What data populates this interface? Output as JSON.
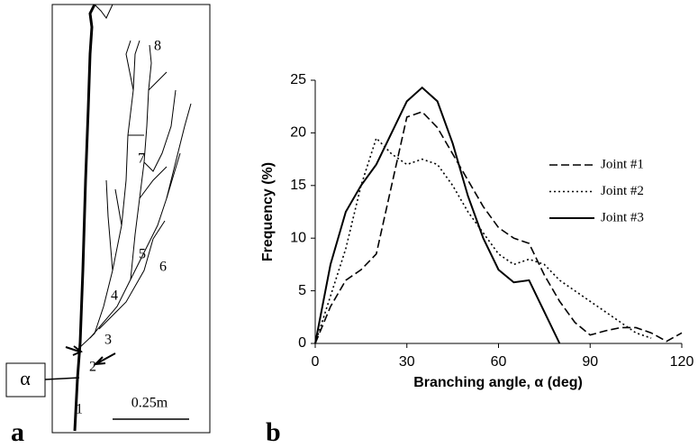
{
  "panel_labels": [
    "a",
    "b"
  ],
  "sketch": {
    "crack_labels": [
      "1",
      "2",
      "3",
      "4",
      "5",
      "6",
      "7",
      "8"
    ],
    "angle_label": "α",
    "scale_label": "0.25m"
  },
  "chart_data": {
    "type": "line",
    "x_label": "Branching angle, α (deg)",
    "y_label": "Frequency (%)",
    "x": [
      0,
      5,
      10,
      15,
      20,
      25,
      30,
      35,
      40,
      45,
      50,
      55,
      60,
      65,
      70,
      75,
      80,
      85,
      90,
      95,
      100,
      105,
      110,
      115,
      120
    ],
    "series": [
      {
        "name": "Joint #1",
        "color": "#000000",
        "dash": "dashed",
        "values": [
          0,
          3.5,
          6,
          7,
          8.5,
          15,
          21.5,
          22,
          20.5,
          18,
          15.5,
          13,
          11,
          10,
          9.5,
          6.5,
          4,
          2,
          0.8,
          1.2,
          1.5,
          1.5,
          1,
          0.2,
          1
        ]
      },
      {
        "name": "Joint #2",
        "color": "#000000",
        "dash": "dotted",
        "values": [
          0,
          4.5,
          9,
          15,
          19.5,
          18,
          17,
          17.5,
          17,
          15,
          12.5,
          10.5,
          8.5,
          7.5,
          8,
          7.5,
          6,
          5,
          4,
          3,
          2,
          1,
          0.5,
          null,
          null
        ]
      },
      {
        "name": "Joint #3",
        "color": "#000000",
        "dash": "solid",
        "values": [
          0,
          7.5,
          12.5,
          15,
          17,
          20,
          23,
          24.3,
          23,
          19,
          14,
          10,
          7,
          5.8,
          6,
          3,
          0,
          null,
          null,
          null,
          null,
          null,
          null,
          null,
          null
        ]
      }
    ],
    "xlim": [
      0,
      120
    ],
    "xticks": [
      0,
      30,
      60,
      90,
      120
    ],
    "ylim": [
      0,
      25
    ],
    "yticks": [
      0,
      5,
      10,
      15,
      20,
      25
    ],
    "grid": false,
    "legend": "upper right"
  }
}
